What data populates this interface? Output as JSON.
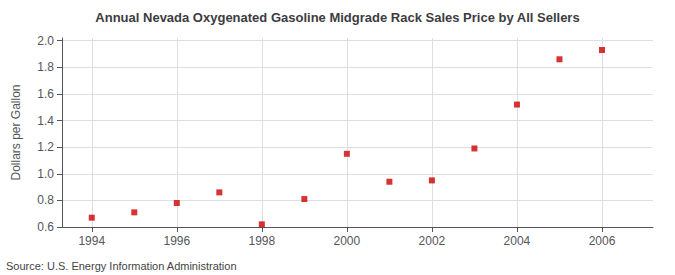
{
  "chart_data": {
    "type": "scatter",
    "title": "Annual Nevada Oxygenated Gasoline Midgrade Rack Sales Price by All Sellers",
    "ylabel": "Dollars per Gallon",
    "annotation": "Source: U.S. Energy Information Administration",
    "x": [
      1994,
      1995,
      1996,
      1997,
      1998,
      1999,
      2000,
      2001,
      2002,
      2003,
      2004,
      2005,
      2006
    ],
    "values": [
      0.67,
      0.71,
      0.78,
      0.86,
      0.62,
      0.81,
      1.15,
      0.94,
      0.95,
      1.19,
      1.52,
      1.86,
      1.93
    ],
    "color": "#cc0000",
    "marker": "square",
    "xlim": [
      1993.3,
      2007.2
    ],
    "xticks": [
      1994,
      1996,
      1998,
      2000,
      2002,
      2004,
      2006
    ],
    "ylim": [
      0.6,
      2.02
    ],
    "yticks": [
      0.6,
      0.8,
      {
        "value": 1.0,
        "label": "1.0"
      },
      1.2,
      1.4,
      1.6,
      1.8,
      {
        "value": 2.0,
        "label": "2.0"
      }
    ],
    "grid": true
  }
}
